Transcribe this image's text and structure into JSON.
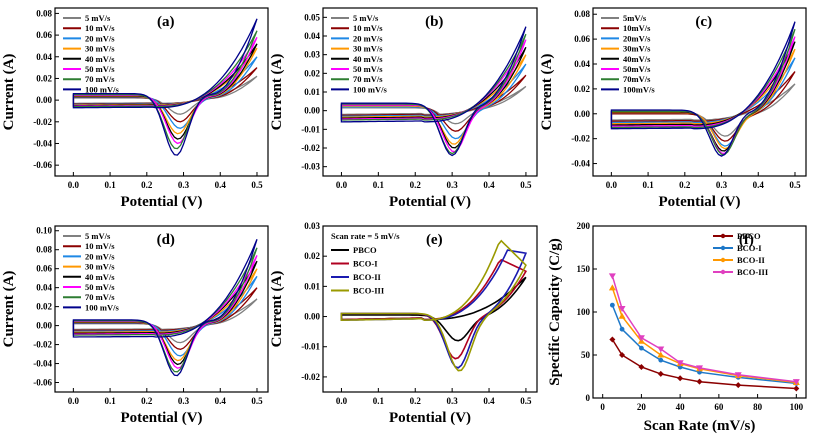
{
  "figure": {
    "panels": [
      {
        "id": "a",
        "label": "(a)",
        "xlabel": "Potential (V)",
        "ylabel": "Current (A)",
        "x_ticks": [
          "0.0",
          "0.1",
          "0.2",
          "0.3",
          "0.4",
          "0.5"
        ],
        "y_ticks": [
          "-0.06",
          "-0.04",
          "-0.02",
          "0.00",
          "0.02",
          "0.04",
          "0.06",
          "0.08"
        ],
        "legend": [
          "5 mV/s",
          "10 mV/s",
          "20 mV/s",
          "30 mV/s",
          "40 mV/s",
          "50 mV/s",
          "70 mV/s",
          "100 mV/s"
        ]
      },
      {
        "id": "b",
        "label": "(b)",
        "xlabel": "Potential (V)",
        "ylabel": "Current (A)",
        "x_ticks": [
          "0.0",
          "0.1",
          "0.2",
          "0.3",
          "0.4",
          "0.5"
        ],
        "y_ticks": [
          "-0.03",
          "-0.02",
          "-0.01",
          "0.00",
          "0.01",
          "0.02",
          "0.03",
          "0.04",
          "0.05"
        ],
        "legend": [
          "5 mV/s",
          "10 mV/s",
          "20 mV/s",
          "30 mV/s",
          "40 mV/s",
          "50 mV/s",
          "70 mV/s",
          "100 mV/s"
        ]
      },
      {
        "id": "c",
        "label": "(c)",
        "xlabel": "Potential (V)",
        "ylabel": "Current (A)",
        "x_ticks": [
          "0.0",
          "0.1",
          "0.2",
          "0.3",
          "0.4",
          "0.5"
        ],
        "y_ticks": [
          "-0.04",
          "-0.02",
          "0.00",
          "0.02",
          "0.04",
          "0.06",
          "0.08"
        ],
        "legend": [
          "5mV/s",
          "10mV/s",
          "20mV/s",
          "30mV/s",
          "40mV/s",
          "50mV/s",
          "70mV/s",
          "100mV/s"
        ]
      },
      {
        "id": "d",
        "label": "(d)",
        "xlabel": "Potential (V)",
        "ylabel": "Current (A)",
        "x_ticks": [
          "0.0",
          "0.1",
          "0.2",
          "0.3",
          "0.4",
          "0.5"
        ],
        "y_ticks": [
          "-0.06",
          "-0.04",
          "-0.02",
          "0.00",
          "0.02",
          "0.04",
          "0.06",
          "0.08",
          "0.10"
        ],
        "legend": [
          "5 mV/s",
          "10 mV/s",
          "20 mV/s",
          "30 mV/s",
          "40 mV/s",
          "50 mV/s",
          "70 mV/s",
          "100 mV/s"
        ]
      },
      {
        "id": "e",
        "label": "(e)",
        "xlabel": "Potential (V)",
        "ylabel": "Current (A)",
        "x_ticks": [
          "0.0",
          "0.1",
          "0.2",
          "0.3",
          "0.4",
          "0.5"
        ],
        "y_ticks": [
          "-0.02",
          "-0.01",
          "0.00",
          "0.01",
          "0.02",
          "0.03"
        ],
        "legend_title": "Scan rate = 5 mV/s",
        "legend": [
          "PBCO",
          "BCO-I",
          "BCO-II",
          "BCO-III"
        ]
      },
      {
        "id": "f",
        "label": "(f)",
        "xlabel": "Scan Rate (mV/s)",
        "ylabel": "Specific Capacity (C/g)",
        "x_ticks": [
          "0",
          "20",
          "40",
          "60",
          "80",
          "100"
        ],
        "y_ticks": [
          "0",
          "50",
          "100",
          "150",
          "200"
        ],
        "legend": [
          "PBCO",
          "BCO-I",
          "BCO-II",
          "BCO-III"
        ]
      }
    ],
    "colors": {
      "scan_rates": [
        "#808080",
        "#8b0000",
        "#1e88e5",
        "#ff9800",
        "#000000",
        "#ff00ff",
        "#2e7d32",
        "#00008b"
      ],
      "samples": [
        "#000000",
        "#b00020",
        "#1a1ab0",
        "#9a9a00"
      ],
      "f_series": [
        "#8b0000",
        "#1e78c8",
        "#ff9800",
        "#e040c0"
      ]
    }
  },
  "chart_data": [
    {
      "type": "line",
      "panel": "a",
      "title": "(a)",
      "xlabel": "Potential (V)",
      "ylabel": "Current (A)",
      "xlim": [
        -0.05,
        0.53
      ],
      "ylim": [
        -0.07,
        0.085
      ],
      "series_names": [
        "5 mV/s",
        "10 mV/s",
        "20 mV/s",
        "30 mV/s",
        "40 mV/s",
        "50 mV/s",
        "70 mV/s",
        "100 mV/s"
      ],
      "peak_anodic": [
        0.022,
        0.03,
        0.04,
        0.048,
        0.052,
        0.058,
        0.064,
        0.075
      ],
      "peak_cathodic": [
        -0.013,
        -0.02,
        -0.026,
        -0.031,
        -0.036,
        -0.04,
        -0.045,
        -0.051
      ],
      "cathodic_peak_potential": [
        0.29,
        0.29,
        0.29,
        0.285,
        0.285,
        0.285,
        0.28,
        0.28
      ],
      "baseline_forward": [
        -0.003,
        -0.0035,
        -0.004,
        -0.0045,
        -0.005,
        -0.0055,
        -0.006,
        -0.007
      ],
      "baseline_reverse": [
        0.002,
        0.0025,
        0.003,
        0.0035,
        0.004,
        0.0045,
        0.005,
        0.006
      ]
    },
    {
      "type": "line",
      "panel": "b",
      "title": "(b)",
      "xlabel": "Potential (V)",
      "ylabel": "Current (A)",
      "xlim": [
        -0.05,
        0.53
      ],
      "ylim": [
        -0.035,
        0.055
      ],
      "series_names": [
        "5 mV/s",
        "10 mV/s",
        "20 mV/s",
        "30 mV/s",
        "40 mV/s",
        "50 mV/s",
        "70 mV/s",
        "100 mV/s"
      ],
      "peak_anodic": [
        0.013,
        0.019,
        0.025,
        0.03,
        0.034,
        0.038,
        0.041,
        0.045
      ],
      "peak_cathodic": [
        -0.007,
        -0.011,
        -0.015,
        -0.018,
        -0.02,
        -0.022,
        -0.023,
        -0.024
      ],
      "cathodic_peak_potential": [
        0.31,
        0.31,
        0.31,
        0.305,
        0.305,
        0.305,
        0.3,
        0.3
      ],
      "baseline_forward": [
        -0.002,
        -0.0025,
        -0.003,
        -0.0035,
        -0.004,
        -0.0045,
        -0.005,
        -0.006
      ],
      "baseline_reverse": [
        0.0015,
        0.002,
        0.002,
        0.0025,
        0.003,
        0.003,
        0.0035,
        0.004
      ]
    },
    {
      "type": "line",
      "panel": "c",
      "title": "(c)",
      "xlabel": "Potential (V)",
      "ylabel": "Current (A)",
      "xlim": [
        -0.05,
        0.53
      ],
      "ylim": [
        -0.05,
        0.085
      ],
      "series_names": [
        "5mV/s",
        "10mV/s",
        "20mV/s",
        "30mV/s",
        "40mV/s",
        "50mV/s",
        "70mV/s",
        "100mV/s"
      ],
      "peak_anodic": [
        0.024,
        0.034,
        0.045,
        0.052,
        0.058,
        0.062,
        0.068,
        0.074
      ],
      "peak_cathodic": [
        -0.018,
        -0.022,
        -0.026,
        -0.028,
        -0.03,
        -0.032,
        -0.033,
        -0.034
      ],
      "cathodic_peak_potential": [
        0.31,
        0.31,
        0.31,
        0.31,
        0.305,
        0.305,
        0.305,
        0.3
      ],
      "baseline_forward": [
        -0.005,
        -0.006,
        -0.007,
        -0.008,
        -0.009,
        -0.01,
        -0.011,
        -0.012
      ],
      "baseline_reverse": [
        0.0,
        0.0,
        0.001,
        0.001,
        0.0015,
        0.002,
        0.002,
        0.003
      ]
    },
    {
      "type": "line",
      "panel": "d",
      "title": "(d)",
      "xlabel": "Potential (V)",
      "ylabel": "Current (A)",
      "xlim": [
        -0.05,
        0.53
      ],
      "ylim": [
        -0.07,
        0.105
      ],
      "series_names": [
        "5 mV/s",
        "10 mV/s",
        "20 mV/s",
        "30 mV/s",
        "40 mV/s",
        "50 mV/s",
        "70 mV/s",
        "100 mV/s"
      ],
      "peak_anodic": [
        0.028,
        0.04,
        0.052,
        0.06,
        0.068,
        0.074,
        0.082,
        0.091
      ],
      "peak_cathodic": [
        -0.018,
        -0.025,
        -0.032,
        -0.037,
        -0.041,
        -0.045,
        -0.049,
        -0.053
      ],
      "cathodic_peak_potential": [
        0.29,
        0.29,
        0.29,
        0.285,
        0.285,
        0.285,
        0.28,
        0.28
      ],
      "baseline_forward": [
        -0.004,
        -0.005,
        -0.006,
        -0.007,
        -0.008,
        -0.009,
        -0.01,
        -0.012
      ],
      "baseline_reverse": [
        0.002,
        0.0025,
        0.003,
        0.0035,
        0.004,
        0.0045,
        0.005,
        0.006
      ]
    },
    {
      "type": "line",
      "panel": "e",
      "title": "(e)",
      "xlabel": "Potential (V)",
      "ylabel": "Current (A)",
      "xlim": [
        -0.05,
        0.53
      ],
      "ylim": [
        -0.025,
        0.03
      ],
      "legend_title": "Scan rate = 5 mV/s",
      "series_names": [
        "PBCO",
        "BCO-I",
        "BCO-II",
        "BCO-III"
      ],
      "anodic_peak_potential": [
        0.49,
        0.43,
        0.45,
        0.43
      ],
      "peak_anodic": [
        0.012,
        0.019,
        0.022,
        0.0255
      ],
      "end_current": [
        0.013,
        0.015,
        0.021,
        0.017
      ],
      "peak_cathodic": [
        -0.008,
        -0.014,
        -0.017,
        -0.018
      ],
      "cathodic_peak_potential": [
        0.315,
        0.31,
        0.315,
        0.32
      ],
      "baseline_forward": [
        -0.001,
        -0.001,
        -0.0012,
        -0.0012
      ],
      "baseline_reverse": [
        0.0005,
        0.001,
        0.001,
        0.001
      ]
    },
    {
      "type": "line",
      "panel": "f",
      "title": "(f)",
      "xlabel": "Scan Rate (mV/s)",
      "ylabel": "Specific Capacity (C/g)",
      "xlim": [
        -5,
        105
      ],
      "ylim": [
        0,
        200
      ],
      "x": [
        5,
        10,
        20,
        30,
        40,
        50,
        70,
        100
      ],
      "series": [
        {
          "name": "PBCO",
          "values": [
            68,
            50,
            36,
            28,
            23,
            19,
            15,
            11
          ]
        },
        {
          "name": "BCO-I",
          "values": [
            108,
            80,
            58,
            44,
            36,
            30,
            24,
            17
          ]
        },
        {
          "name": "BCO-II",
          "values": [
            128,
            95,
            66,
            50,
            40,
            34,
            26,
            18
          ]
        },
        {
          "name": "BCO-III",
          "values": [
            142,
            104,
            70,
            57,
            41,
            35,
            27,
            19
          ]
        }
      ]
    }
  ]
}
